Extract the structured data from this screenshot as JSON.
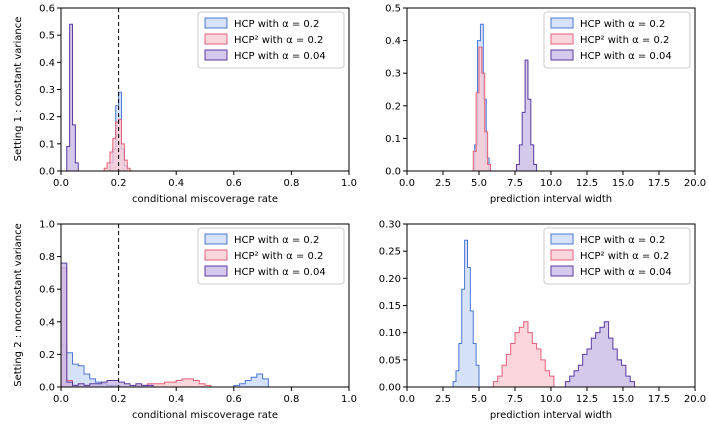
{
  "chart_data": [
    {
      "type": "histogram",
      "row_label": "Setting 1 : constant variance",
      "xlabel": "conditional miscoverage rate",
      "xlim": [
        0,
        1
      ],
      "ylim": [
        0,
        0.6
      ],
      "xticks": [
        "0.0",
        "0.2",
        "0.4",
        "0.6",
        "0.8",
        "1.0"
      ],
      "yticks": [
        "0.0",
        "0.1",
        "0.2",
        "0.3",
        "0.4",
        "0.5",
        "0.6"
      ],
      "vline_x": 0.2,
      "legend_position": "top-right",
      "series": [
        {
          "name": "HCP with α = 0.2",
          "color": "#4a78d6",
          "fill": "#c8d8f5",
          "edges": [
            0.17,
            0.18,
            0.19,
            0.2,
            0.21,
            0.22,
            0.23
          ],
          "heights": [
            0.03,
            0.08,
            0.24,
            0.29,
            0.08,
            0.02
          ]
        },
        {
          "name": "HCP² with α = 0.2",
          "color": "#e3607a",
          "fill": "#f9c9d2",
          "edges": [
            0.15,
            0.16,
            0.17,
            0.18,
            0.19,
            0.2,
            0.21,
            0.22,
            0.23,
            0.24
          ],
          "heights": [
            0.01,
            0.03,
            0.07,
            0.12,
            0.18,
            0.19,
            0.1,
            0.04,
            0.01
          ]
        },
        {
          "name": "HCP with α = 0.04",
          "color": "#5a3aa0",
          "fill": "#c5b6e4",
          "edges": [
            0.02,
            0.03,
            0.04,
            0.05,
            0.06
          ],
          "heights": [
            0.09,
            0.54,
            0.17,
            0.03
          ]
        }
      ]
    },
    {
      "type": "histogram",
      "row_label": "",
      "xlabel": "prediction interval width",
      "xlim": [
        0,
        20
      ],
      "ylim": [
        0,
        0.5
      ],
      "xticks": [
        "0.0",
        "2.5",
        "5.0",
        "7.5",
        "10.0",
        "12.5",
        "15.0",
        "17.5",
        "20.0"
      ],
      "yticks": [
        "0.0",
        "0.1",
        "0.2",
        "0.3",
        "0.4",
        "0.5"
      ],
      "legend_position": "top-right",
      "series": [
        {
          "name": "HCP with α = 0.2",
          "color": "#4a78d6",
          "fill": "#c8d8f5",
          "edges": [
            4.7,
            4.9,
            5.1,
            5.3,
            5.5,
            5.7
          ],
          "heights": [
            0.08,
            0.4,
            0.45,
            0.22,
            0.04
          ]
        },
        {
          "name": "HCP² with α = 0.2",
          "color": "#e3607a",
          "fill": "#f9c9d2",
          "edges": [
            4.6,
            4.8,
            5.0,
            5.2,
            5.4,
            5.6,
            5.8
          ],
          "heights": [
            0.06,
            0.24,
            0.38,
            0.3,
            0.12,
            0.02
          ]
        },
        {
          "name": "HCP with α = 0.04",
          "color": "#5a3aa0",
          "fill": "#c5b6e4",
          "edges": [
            7.6,
            7.8,
            8.0,
            8.2,
            8.4,
            8.6,
            8.8,
            9.0
          ],
          "heights": [
            0.02,
            0.08,
            0.18,
            0.34,
            0.22,
            0.08,
            0.02
          ]
        }
      ]
    },
    {
      "type": "histogram",
      "row_label": "Setting 2 : nonconstant variance",
      "xlabel": "conditional miscoverage rate",
      "xlim": [
        0,
        1
      ],
      "ylim": [
        0,
        1.0
      ],
      "xticks": [
        "0.0",
        "0.2",
        "0.4",
        "0.6",
        "0.8",
        "1.0"
      ],
      "yticks": [
        "0.0",
        "0.2",
        "0.4",
        "0.6",
        "0.8",
        "1.0"
      ],
      "vline_x": 0.2,
      "legend_position": "top-right",
      "series": [
        {
          "name": "HCP with α = 0.2",
          "color": "#4a78d6",
          "fill": "#c8d8f5",
          "edges": [
            0.0,
            0.02,
            0.04,
            0.06,
            0.08,
            0.1,
            0.12,
            0.14,
            0.16,
            0.18,
            0.2,
            0.22,
            0.6,
            0.62,
            0.64,
            0.66,
            0.68,
            0.7,
            0.72
          ],
          "heights": [
            0.26,
            0.21,
            0.14,
            0.13,
            0.08,
            0.05,
            0.03,
            0.02,
            0.01,
            0.01,
            0.0,
            0.0,
            0.01,
            0.02,
            0.04,
            0.06,
            0.08,
            0.05
          ]
        },
        {
          "name": "HCP² with α = 0.2",
          "color": "#e3607a",
          "fill": "#f9c9d2",
          "edges": [
            0.0,
            0.02,
            0.04,
            0.26,
            0.28,
            0.3,
            0.32,
            0.34,
            0.36,
            0.38,
            0.4,
            0.42,
            0.44,
            0.46,
            0.48,
            0.5,
            0.52
          ],
          "heights": [
            0.73,
            0.04,
            0.0,
            0.01,
            0.01,
            0.02,
            0.02,
            0.02,
            0.03,
            0.03,
            0.04,
            0.05,
            0.05,
            0.04,
            0.02,
            0.01
          ]
        },
        {
          "name": "HCP with α = 0.04",
          "color": "#5a3aa0",
          "fill": "#c5b6e4",
          "edges": [
            0.0,
            0.02,
            0.04,
            0.06,
            0.08,
            0.1,
            0.12,
            0.14,
            0.16,
            0.18,
            0.2,
            0.22,
            0.24,
            0.26,
            0.28,
            0.3,
            0.32
          ],
          "heights": [
            0.76,
            0.03,
            0.01,
            0.02,
            0.01,
            0.02,
            0.02,
            0.03,
            0.04,
            0.04,
            0.03,
            0.02,
            0.01,
            0.02,
            0.01,
            0.01
          ]
        }
      ]
    },
    {
      "type": "histogram",
      "row_label": "",
      "xlabel": "prediction interval width",
      "xlim": [
        0,
        20
      ],
      "ylim": [
        0,
        0.3
      ],
      "xticks": [
        "0.0",
        "2.5",
        "5.0",
        "7.5",
        "10.0",
        "12.5",
        "15.0",
        "17.5",
        "20.0"
      ],
      "yticks": [
        "0.00",
        "0.05",
        "0.10",
        "0.15",
        "0.20",
        "0.25",
        "0.30"
      ],
      "legend_position": "top-right",
      "series": [
        {
          "name": "HCP with α = 0.2",
          "color": "#4a78d6",
          "fill": "#c8d8f5",
          "edges": [
            3.2,
            3.4,
            3.6,
            3.8,
            4.0,
            4.2,
            4.4,
            4.6,
            4.8,
            5.0
          ],
          "heights": [
            0.01,
            0.03,
            0.08,
            0.18,
            0.27,
            0.22,
            0.14,
            0.08,
            0.04
          ]
        },
        {
          "name": "HCP² with α = 0.2",
          "color": "#e3607a",
          "fill": "#f9c9d2",
          "edges": [
            6.0,
            6.3,
            6.6,
            6.9,
            7.2,
            7.5,
            7.8,
            8.1,
            8.4,
            8.7,
            9.0,
            9.3,
            9.6,
            9.9,
            10.2
          ],
          "heights": [
            0.01,
            0.02,
            0.04,
            0.06,
            0.08,
            0.1,
            0.11,
            0.12,
            0.1,
            0.08,
            0.07,
            0.05,
            0.03,
            0.02
          ]
        },
        {
          "name": "HCP with α = 0.04",
          "color": "#5a3aa0",
          "fill": "#c5b6e4",
          "edges": [
            11.0,
            11.3,
            11.6,
            11.9,
            12.2,
            12.5,
            12.8,
            13.1,
            13.4,
            13.7,
            14.0,
            14.3,
            14.6,
            14.9,
            15.2,
            15.5,
            15.8
          ],
          "heights": [
            0.01,
            0.02,
            0.03,
            0.04,
            0.06,
            0.07,
            0.09,
            0.1,
            0.11,
            0.12,
            0.09,
            0.07,
            0.05,
            0.04,
            0.02,
            0.01
          ]
        }
      ]
    }
  ]
}
